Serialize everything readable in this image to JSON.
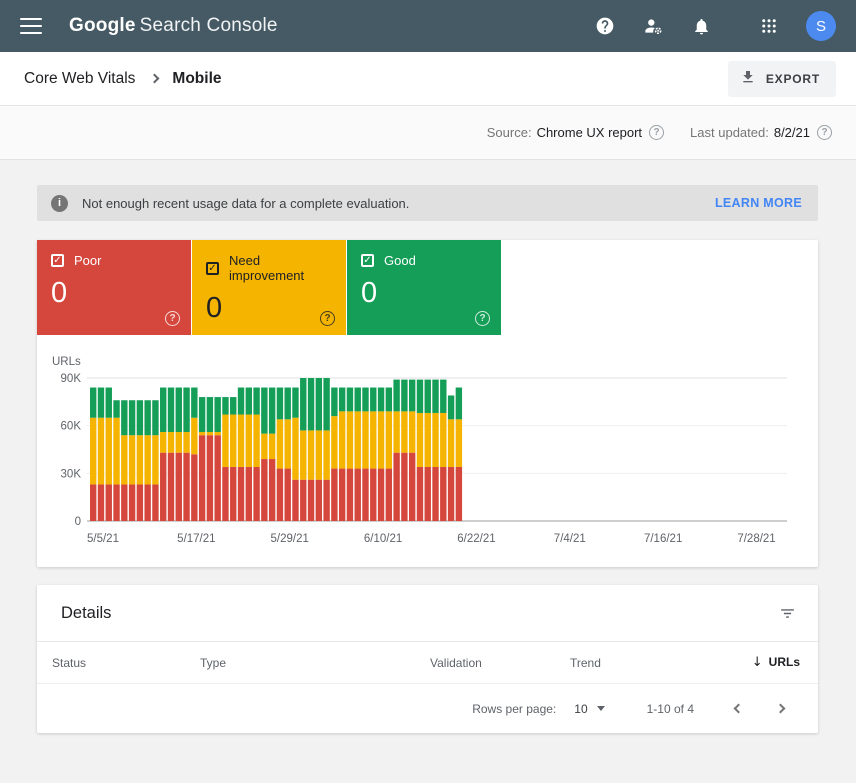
{
  "topbar": {
    "product": "Google",
    "product_suffix": "Search Console",
    "icons": [
      "menu-icon",
      "help-icon",
      "manage-users-icon",
      "notifications-icon",
      "apps-grid-icon"
    ],
    "avatar_letter": "S",
    "bar_color": "#455a64",
    "avatar_color": "#4d8af0"
  },
  "breadcrumb": {
    "parent": "Core Web Vitals",
    "current": "Mobile",
    "export_label": "EXPORT"
  },
  "source_row": {
    "source_label": "Source:",
    "source_value": "Chrome UX report",
    "updated_label": "Last updated:",
    "updated_value": "8/2/21"
  },
  "banner": {
    "message": "Not enough recent usage data for a complete evaluation.",
    "action": "LEARN MORE",
    "background": "#e0e0e0",
    "action_color": "#4285f4"
  },
  "status_cards": [
    {
      "label": "Poor",
      "value": "0",
      "color": "#d5473d",
      "text_color": "#ffffff"
    },
    {
      "label": "Need improvement",
      "value": "0",
      "color": "#f4b400",
      "text_color": "#202124"
    },
    {
      "label": "Good",
      "value": "0",
      "color": "#149e57",
      "text_color": "#ffffff"
    }
  ],
  "chart_data": {
    "type": "bar",
    "subtype": "stacked-daily",
    "ylabel": "URLs",
    "ylim": [
      0,
      90000
    ],
    "y_tick_values": [
      0,
      30000,
      60000,
      90000
    ],
    "y_tick_labels": [
      "0",
      "30K",
      "60K",
      "90K"
    ],
    "x_tick_labels": [
      "5/5/21",
      "5/17/21",
      "5/29/21",
      "6/10/21",
      "6/22/21",
      "7/4/21",
      "7/16/21",
      "7/28/21"
    ],
    "x_tick_days": [
      0,
      12,
      24,
      36,
      48,
      60,
      72,
      84
    ],
    "axis_total_days": 90,
    "start_date": "5/5/21",
    "interval": "daily",
    "values_unit": "URLs x1000 (approx, read from chart)",
    "series": [
      {
        "name": "Poor",
        "color": "#d5473d"
      },
      {
        "name": "Need improvement",
        "color": "#f4b400"
      },
      {
        "name": "Good",
        "color": "#149e57"
      }
    ],
    "bars": [
      [
        23,
        42,
        19
      ],
      [
        23,
        42,
        19
      ],
      [
        23,
        42,
        19
      ],
      [
        23,
        42,
        11
      ],
      [
        23,
        31,
        22
      ],
      [
        23,
        31,
        22
      ],
      [
        23,
        31,
        22
      ],
      [
        23,
        31,
        22
      ],
      [
        23,
        31,
        22
      ],
      [
        43,
        13,
        28
      ],
      [
        43,
        13,
        28
      ],
      [
        43,
        13,
        28
      ],
      [
        43,
        13,
        28
      ],
      [
        42,
        23,
        19
      ],
      [
        54,
        2,
        22
      ],
      [
        54,
        2,
        22
      ],
      [
        54,
        2,
        22
      ],
      [
        34,
        33,
        11
      ],
      [
        34,
        33,
        11
      ],
      [
        34,
        33,
        17
      ],
      [
        34,
        33,
        17
      ],
      [
        34,
        33,
        17
      ],
      [
        39,
        16,
        29
      ],
      [
        39,
        16,
        29
      ],
      [
        33,
        31,
        20
      ],
      [
        33,
        31,
        20
      ],
      [
        26,
        39,
        19
      ],
      [
        26,
        31,
        33
      ],
      [
        26,
        31,
        33
      ],
      [
        26,
        31,
        33
      ],
      [
        26,
        31,
        33
      ],
      [
        33,
        33,
        18
      ],
      [
        33,
        36,
        15
      ],
      [
        33,
        36,
        15
      ],
      [
        33,
        36,
        15
      ],
      [
        33,
        36,
        15
      ],
      [
        33,
        36,
        15
      ],
      [
        33,
        36,
        15
      ],
      [
        33,
        36,
        15
      ],
      [
        43,
        26,
        20
      ],
      [
        43,
        26,
        20
      ],
      [
        43,
        26,
        20
      ],
      [
        34,
        34,
        21
      ],
      [
        34,
        34,
        21
      ],
      [
        34,
        34,
        21
      ],
      [
        34,
        34,
        21
      ],
      [
        34,
        30,
        15
      ],
      [
        34,
        30,
        20
      ]
    ]
  },
  "details": {
    "title": "Details",
    "columns": [
      "Status",
      "Type",
      "Validation",
      "Trend",
      "URLs"
    ],
    "sort_column": "URLs",
    "sort_direction": "descending",
    "pagination": {
      "rows_per_page_label": "Rows per page:",
      "rows_per_page_value": "10",
      "range": "1-10 of 4"
    }
  }
}
